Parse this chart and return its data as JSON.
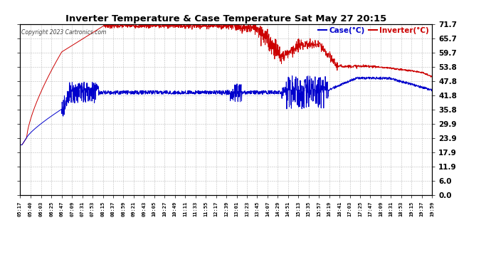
{
  "title": "Inverter Temperature & Case Temperature Sat May 27 20:15",
  "copyright": "Copyright 2023 Cartronics.com",
  "legend_case": "Case(°C)",
  "legend_inverter": "Inverter(°C)",
  "yticks": [
    0.0,
    6.0,
    11.9,
    17.9,
    23.9,
    29.9,
    35.8,
    41.8,
    47.8,
    53.8,
    59.7,
    65.7,
    71.7
  ],
  "ymin": 0.0,
  "ymax": 71.7,
  "bg_color": "#ffffff",
  "plot_bg_color": "#ffffff",
  "grid_color": "#aaaaaa",
  "inverter_color": "#cc0000",
  "case_color": "#0000cc",
  "title_color": "#000000",
  "copyright_color": "#444444",
  "n_points": 1800,
  "total_minutes": 882,
  "xtick_labels": [
    "05:17",
    "05:40",
    "06:03",
    "06:25",
    "06:47",
    "07:09",
    "07:31",
    "07:53",
    "08:15",
    "08:37",
    "08:59",
    "09:21",
    "09:43",
    "10:05",
    "10:27",
    "10:49",
    "11:11",
    "11:33",
    "11:55",
    "12:17",
    "12:39",
    "13:01",
    "13:23",
    "13:45",
    "14:07",
    "14:29",
    "14:51",
    "15:13",
    "15:35",
    "15:57",
    "16:19",
    "16:41",
    "17:03",
    "17:25",
    "17:47",
    "18:09",
    "18:31",
    "18:53",
    "19:15",
    "19:37",
    "19:59"
  ]
}
